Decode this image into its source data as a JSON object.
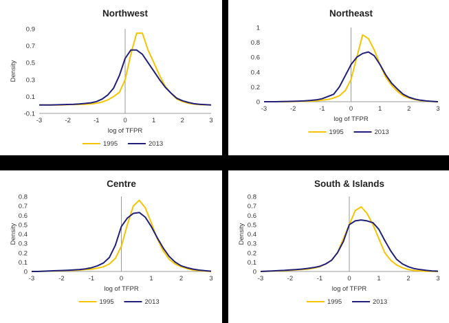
{
  "colors": {
    "series_1995": "#F5C400",
    "series_2013": "#1F1F7A"
  },
  "chart_data": [
    {
      "type": "line",
      "title": "Northwest",
      "xlabel": "log of TFPR",
      "ylabel": "Density",
      "xlim": [
        -3,
        3
      ],
      "ylim": [
        -0.1,
        0.9
      ],
      "xticks": [
        "-3",
        "-2",
        "-1",
        "0",
        "1",
        "2",
        "3"
      ],
      "yticks": [
        "-0.1",
        "0.1",
        "0.3",
        "0.5",
        "0.7",
        "0.9"
      ],
      "x": [
        -3,
        -2.8,
        -2.6,
        -2.4,
        -2.2,
        -2,
        -1.8,
        -1.6,
        -1.4,
        -1.2,
        -1,
        -0.8,
        -0.6,
        -0.4,
        -0.2,
        0,
        0.2,
        0.4,
        0.6,
        0.8,
        1,
        1.2,
        1.4,
        1.6,
        1.8,
        2,
        2.2,
        2.4,
        2.6,
        2.8,
        3
      ],
      "series": [
        {
          "name": "1995",
          "values": [
            0,
            0,
            0,
            0,
            0,
            0.003,
            0.005,
            0.006,
            0.008,
            0.012,
            0.02,
            0.035,
            0.06,
            0.1,
            0.15,
            0.3,
            0.6,
            0.85,
            0.85,
            0.65,
            0.5,
            0.35,
            0.22,
            0.14,
            0.07,
            0.04,
            0.02,
            0.01,
            0.004,
            0.002,
            0
          ]
        },
        {
          "name": "2013",
          "values": [
            0,
            0,
            0,
            0.002,
            0.004,
            0.006,
            0.008,
            0.012,
            0.018,
            0.025,
            0.04,
            0.07,
            0.12,
            0.2,
            0.35,
            0.55,
            0.65,
            0.65,
            0.6,
            0.5,
            0.4,
            0.3,
            0.21,
            0.14,
            0.08,
            0.05,
            0.03,
            0.015,
            0.008,
            0.004,
            0
          ]
        }
      ],
      "legend": "bottom"
    },
    {
      "type": "line",
      "title": "Northeast",
      "xlabel": "log of TFPR",
      "ylabel": "",
      "xlim": [
        -3,
        3
      ],
      "ylim": [
        0,
        1
      ],
      "xticks": [
        "-3",
        "-2",
        "-1",
        "0",
        "1",
        "2",
        "3"
      ],
      "yticks": [
        "0",
        "0.2",
        "0.4",
        "0.6",
        "0.8",
        "1"
      ],
      "x": [
        -3,
        -2.8,
        -2.6,
        -2.4,
        -2.2,
        -2,
        -1.8,
        -1.6,
        -1.4,
        -1.2,
        -1,
        -0.8,
        -0.6,
        -0.4,
        -0.2,
        0,
        0.2,
        0.4,
        0.6,
        0.8,
        1,
        1.2,
        1.4,
        1.6,
        1.8,
        2,
        2.2,
        2.4,
        2.6,
        2.8,
        3
      ],
      "series": [
        {
          "name": "1995",
          "values": [
            0,
            0,
            0,
            0,
            0,
            0.002,
            0.004,
            0.006,
            0.008,
            0.012,
            0.02,
            0.03,
            0.05,
            0.08,
            0.15,
            0.3,
            0.6,
            0.9,
            0.85,
            0.7,
            0.5,
            0.33,
            0.22,
            0.14,
            0.08,
            0.05,
            0.03,
            0.015,
            0.008,
            0.003,
            0
          ]
        },
        {
          "name": "2013",
          "values": [
            0,
            0,
            0,
            0.002,
            0.004,
            0.006,
            0.008,
            0.012,
            0.018,
            0.025,
            0.04,
            0.07,
            0.1,
            0.2,
            0.35,
            0.5,
            0.6,
            0.65,
            0.67,
            0.62,
            0.5,
            0.36,
            0.25,
            0.17,
            0.1,
            0.06,
            0.035,
            0.02,
            0.01,
            0.005,
            0
          ]
        }
      ],
      "legend": "bottom"
    },
    {
      "type": "line",
      "title": "Centre",
      "xlabel": "log of TFPR",
      "ylabel": "Density",
      "xlim": [
        -3,
        3
      ],
      "ylim": [
        0,
        0.8
      ],
      "xticks": [
        "-3",
        "-2",
        "-1",
        "0",
        "1",
        "2",
        "3"
      ],
      "yticks": [
        "0",
        "0.1",
        "0.2",
        "0.3",
        "0.4",
        "0.5",
        "0.6",
        "0.7",
        "0.8"
      ],
      "x": [
        -3,
        -2.8,
        -2.6,
        -2.4,
        -2.2,
        -2,
        -1.8,
        -1.6,
        -1.4,
        -1.2,
        -1,
        -0.8,
        -0.6,
        -0.4,
        -0.2,
        0,
        0.2,
        0.4,
        0.6,
        0.8,
        1,
        1.2,
        1.4,
        1.6,
        1.8,
        2,
        2.2,
        2.4,
        2.6,
        2.8,
        3
      ],
      "series": [
        {
          "name": "1995",
          "values": [
            0,
            0,
            0.002,
            0.004,
            0.006,
            0.008,
            0.01,
            0.012,
            0.015,
            0.02,
            0.025,
            0.035,
            0.05,
            0.08,
            0.14,
            0.27,
            0.5,
            0.7,
            0.76,
            0.68,
            0.52,
            0.35,
            0.22,
            0.13,
            0.08,
            0.05,
            0.03,
            0.015,
            0.008,
            0.004,
            0
          ]
        },
        {
          "name": "2013",
          "values": [
            0,
            0,
            0.003,
            0.005,
            0.008,
            0.01,
            0.013,
            0.016,
            0.02,
            0.028,
            0.04,
            0.06,
            0.09,
            0.15,
            0.28,
            0.48,
            0.57,
            0.62,
            0.63,
            0.58,
            0.48,
            0.36,
            0.25,
            0.16,
            0.1,
            0.06,
            0.04,
            0.025,
            0.015,
            0.008,
            0.003
          ]
        }
      ],
      "legend": "bottom"
    },
    {
      "type": "line",
      "title": "South & Islands",
      "xlabel": "log of TFPR",
      "ylabel": "Density",
      "xlim": [
        -3,
        3
      ],
      "ylim": [
        0,
        0.8
      ],
      "xticks": [
        "-3",
        "-2",
        "-1",
        "0",
        "1",
        "2",
        "3"
      ],
      "yticks": [
        "0",
        "0.1",
        "0.2",
        "0.3",
        "0.4",
        "0.5",
        "0.6",
        "0.7",
        "0.8"
      ],
      "x": [
        -3,
        -2.8,
        -2.6,
        -2.4,
        -2.2,
        -2,
        -1.8,
        -1.6,
        -1.4,
        -1.2,
        -1,
        -0.8,
        -0.6,
        -0.4,
        -0.2,
        0,
        0.2,
        0.4,
        0.6,
        0.8,
        1,
        1.2,
        1.4,
        1.6,
        1.8,
        2,
        2.2,
        2.4,
        2.6,
        2.8,
        3
      ],
      "series": [
        {
          "name": "1995",
          "values": [
            0,
            0.002,
            0.004,
            0.006,
            0.008,
            0.012,
            0.016,
            0.02,
            0.025,
            0.035,
            0.05,
            0.08,
            0.12,
            0.2,
            0.35,
            0.5,
            0.65,
            0.69,
            0.62,
            0.5,
            0.35,
            0.2,
            0.12,
            0.07,
            0.04,
            0.02,
            0.01,
            0.005,
            0.002,
            0.001,
            0
          ]
        },
        {
          "name": "2013",
          "values": [
            0,
            0.003,
            0.006,
            0.009,
            0.012,
            0.016,
            0.02,
            0.026,
            0.033,
            0.042,
            0.055,
            0.08,
            0.12,
            0.2,
            0.32,
            0.5,
            0.54,
            0.55,
            0.54,
            0.52,
            0.45,
            0.33,
            0.22,
            0.13,
            0.08,
            0.05,
            0.03,
            0.02,
            0.012,
            0.006,
            0.003
          ]
        }
      ],
      "legend": "bottom"
    }
  ]
}
